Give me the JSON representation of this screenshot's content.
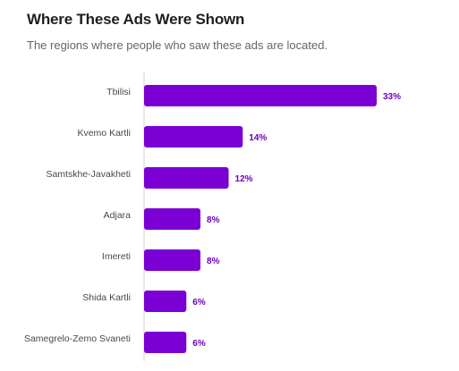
{
  "header": {
    "title": "Where These Ads Were Shown",
    "subtitle": "The regions where people who saw these ads are located."
  },
  "colors": {
    "bar": "#7b00d4",
    "value_label": "#6a00c2",
    "axis": "#ccd0d5"
  },
  "chart_data": {
    "type": "bar",
    "orientation": "horizontal",
    "title": "Where These Ads Were Shown",
    "subtitle": "The regions where people who saw these ads are located.",
    "categories": [
      "Tbilisi",
      "Kvemo Kartli",
      "Samtskhe-Javakheti",
      "Adjara",
      "Imereti",
      "Shida Kartli",
      "Samegrelo-Zemo Svaneti"
    ],
    "values": [
      33,
      14,
      12,
      8,
      8,
      6,
      6
    ],
    "value_labels": [
      "33%",
      "14%",
      "12%",
      "8%",
      "8%",
      "6%",
      "6%"
    ],
    "unit": "%",
    "xlim": [
      0,
      33
    ],
    "grid": false,
    "legend": "none"
  }
}
